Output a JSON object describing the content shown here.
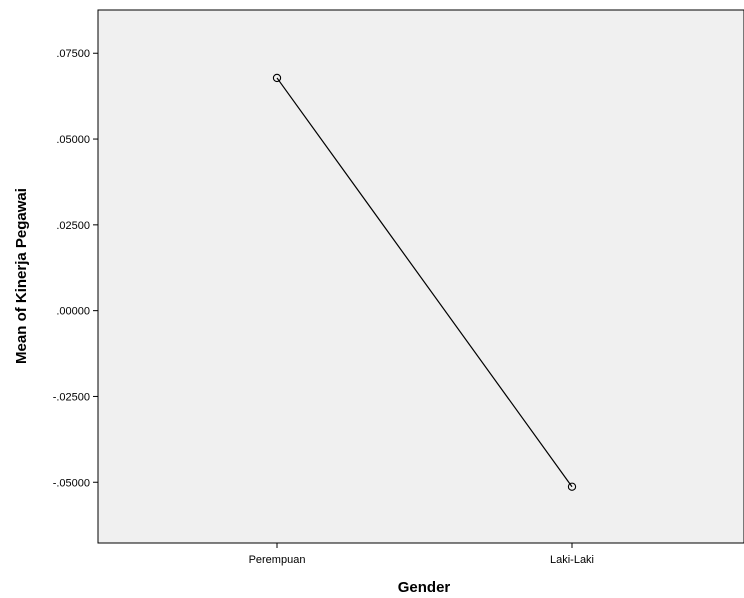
{
  "chart_data": {
    "type": "line",
    "title": "",
    "xlabel": "Gender",
    "ylabel": "Mean of Kinerja Pegawai",
    "categories": [
      "Perempuan",
      "Laki-Laki"
    ],
    "series": [
      {
        "values": [
          0.0678,
          -0.0513
        ]
      }
    ],
    "y_ticks": [
      0.075,
      0.05,
      0.025,
      0.0,
      -0.025,
      -0.05
    ],
    "y_tick_labels": [
      ".07500",
      ".05000",
      ".02500",
      ".00000",
      "-.02500",
      "-.05000"
    ],
    "ylim": [
      -0.0677,
      0.0876
    ],
    "grid": false,
    "legend": "none",
    "colors": {
      "plot_background": "#f0f0f0",
      "line": "#000000",
      "marker": "#000000"
    },
    "marker": "open-circle"
  }
}
